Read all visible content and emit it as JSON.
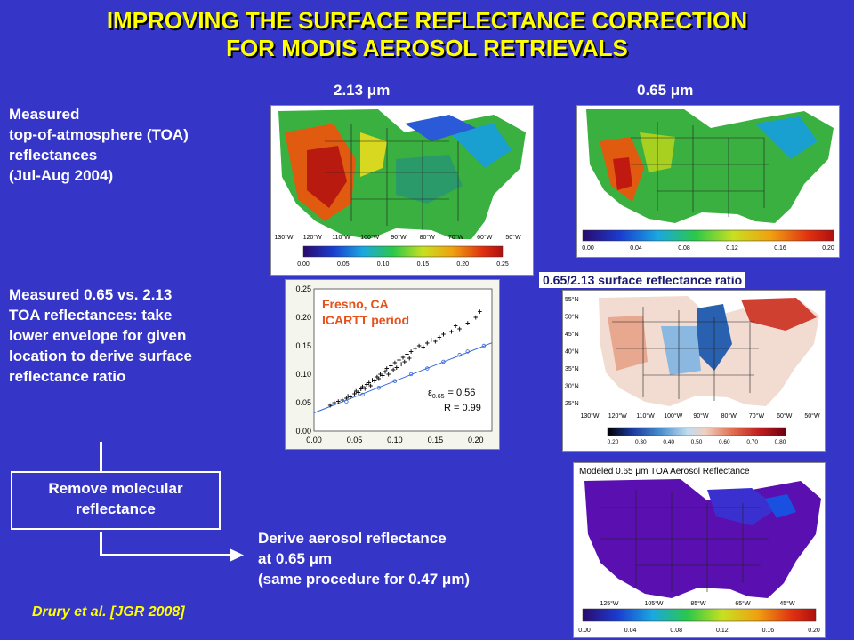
{
  "title": {
    "line1": "IMPROVING THE SURFACE REFLECTANCE CORRECTION",
    "line2": "FOR MODIS AEROSOL RETRIEVALS"
  },
  "left": {
    "measured_line1": "Measured",
    "measured_line2": "top-of-atmosphere (TOA)",
    "measured_line3": "reflectances",
    "measured_line4": "(Jul-Aug 2004)",
    "vs_line1": "Measured 0.65 vs. 2.13",
    "vs_line2": "TOA reflectances: take",
    "vs_line3": "lower envelope for given",
    "vs_line4": "location to derive surface",
    "vs_line5": "reflectance ratio",
    "box_line1": "Remove molecular",
    "box_line2": "reflectance",
    "derive_line1": "Derive aerosol reflectance",
    "derive_line2": "at 0.65 μm",
    "derive_line3": "(same procedure for 0.47 μm)",
    "citation": "Drury et al. [JGR 2008]"
  },
  "maps": {
    "map213": {
      "label": "2.13 μm",
      "lon_ticks": [
        "130°W",
        "120°W",
        "110°W",
        "100°W",
        "90°W",
        "80°W",
        "70°W",
        "60°W",
        "50°W"
      ],
      "colorbar_ticks": [
        "0.00",
        "0.05",
        "0.10",
        "0.15",
        "0.20",
        "0.25"
      ]
    },
    "map065": {
      "label": "0.65 μm",
      "colorbar_ticks": [
        "0.00",
        "0.04",
        "0.08",
        "0.12",
        "0.16",
        "0.20"
      ]
    },
    "ratio": {
      "label": "0.65/2.13 surface reflectance ratio",
      "lat_ticks": [
        "55°N",
        "50°N",
        "45°N",
        "40°N",
        "35°N",
        "30°N",
        "25°N"
      ],
      "lon_ticks": [
        "130°W",
        "120°W",
        "110°W",
        "100°W",
        "90°W",
        "80°W",
        "70°W",
        "60°W",
        "50°W"
      ],
      "colorbar_ticks": [
        "0.20",
        "0.30",
        "0.40",
        "0.50",
        "0.60",
        "0.70",
        "0.80"
      ]
    },
    "modeled": {
      "title": "Modeled 0.65 μm TOA Aerosol Reflectance",
      "lon_ticks": [
        "125°W",
        "105°W",
        "85°W",
        "65°W",
        "45°W"
      ],
      "colorbar_ticks": [
        "0.00",
        "0.04",
        "0.08",
        "0.12",
        "0.16",
        "0.20"
      ]
    }
  },
  "colors": {
    "background": "#3535c8",
    "title": "#ffff00",
    "annotation": "#e8501a"
  },
  "chart_data": {
    "type": "scatter",
    "annotation_line1": "Fresno, CA",
    "annotation_line2": "ICARTT period",
    "fit_label_eps": "ε",
    "fit_label_sub": "0.65",
    "fit_label_eq": "= 0.56",
    "fit_r": "R = 0.99",
    "xlim": [
      0.0,
      0.22
    ],
    "ylim": [
      0.0,
      0.25
    ],
    "x_ticks": [
      "0.00",
      "0.05",
      "0.10",
      "0.15",
      "0.20"
    ],
    "y_ticks": [
      "0.00",
      "0.05",
      "0.10",
      "0.15",
      "0.20",
      "0.25"
    ],
    "x_tick_values": [
      0.0,
      0.05,
      0.1,
      0.15,
      0.2
    ],
    "y_tick_values": [
      0.0,
      0.05,
      0.1,
      0.15,
      0.2,
      0.25
    ],
    "fit_line": {
      "slope": 0.56,
      "intercept": 0.032
    },
    "points": [
      [
        0.02,
        0.045
      ],
      [
        0.025,
        0.05
      ],
      [
        0.03,
        0.052
      ],
      [
        0.035,
        0.055
      ],
      [
        0.04,
        0.058
      ],
      [
        0.042,
        0.062
      ],
      [
        0.045,
        0.06
      ],
      [
        0.05,
        0.066
      ],
      [
        0.052,
        0.07
      ],
      [
        0.055,
        0.068
      ],
      [
        0.058,
        0.074
      ],
      [
        0.06,
        0.078
      ],
      [
        0.063,
        0.075
      ],
      [
        0.065,
        0.082
      ],
      [
        0.068,
        0.085
      ],
      [
        0.07,
        0.08
      ],
      [
        0.072,
        0.09
      ],
      [
        0.075,
        0.088
      ],
      [
        0.078,
        0.095
      ],
      [
        0.08,
        0.092
      ],
      [
        0.082,
        0.1
      ],
      [
        0.085,
        0.098
      ],
      [
        0.088,
        0.105
      ],
      [
        0.09,
        0.11
      ],
      [
        0.092,
        0.1
      ],
      [
        0.095,
        0.115
      ],
      [
        0.098,
        0.108
      ],
      [
        0.1,
        0.12
      ],
      [
        0.102,
        0.112
      ],
      [
        0.105,
        0.125
      ],
      [
        0.108,
        0.118
      ],
      [
        0.11,
        0.13
      ],
      [
        0.112,
        0.122
      ],
      [
        0.115,
        0.135
      ],
      [
        0.118,
        0.128
      ],
      [
        0.12,
        0.14
      ],
      [
        0.125,
        0.145
      ],
      [
        0.13,
        0.15
      ],
      [
        0.135,
        0.148
      ],
      [
        0.14,
        0.155
      ],
      [
        0.145,
        0.16
      ],
      [
        0.15,
        0.158
      ],
      [
        0.155,
        0.165
      ],
      [
        0.16,
        0.17
      ],
      [
        0.17,
        0.175
      ],
      [
        0.175,
        0.185
      ],
      [
        0.18,
        0.18
      ],
      [
        0.19,
        0.19
      ],
      [
        0.2,
        0.2
      ],
      [
        0.205,
        0.21
      ]
    ],
    "low_points": [
      [
        0.04,
        0.052
      ],
      [
        0.06,
        0.064
      ],
      [
        0.08,
        0.076
      ],
      [
        0.1,
        0.088
      ],
      [
        0.12,
        0.1
      ],
      [
        0.14,
        0.11
      ],
      [
        0.16,
        0.122
      ],
      [
        0.18,
        0.134
      ],
      [
        0.19,
        0.14
      ],
      [
        0.21,
        0.15
      ]
    ]
  }
}
